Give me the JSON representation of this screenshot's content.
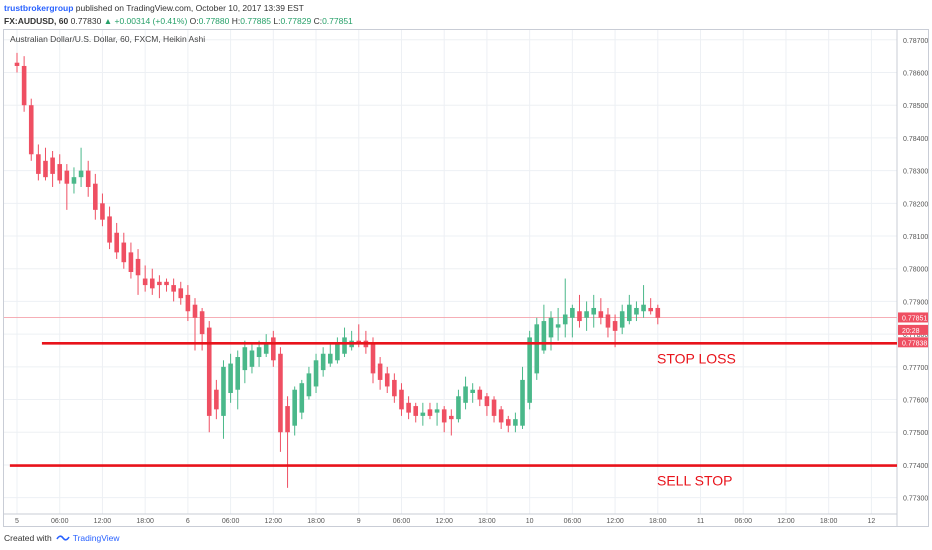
{
  "header": {
    "publisher": "trustbrokergroup",
    "published_text": "published on TradingView.com, October 10, 2017 13:39 EST",
    "symbol": "FX:AUDUSD, 60",
    "last": "0.77830",
    "change": "▲ +0.00314 (+0.41%)",
    "o_label": "O:",
    "o_value": "0.77880",
    "h_label": "H:",
    "h_value": "0.77885",
    "l_label": "L:",
    "l_value": "0.77829",
    "c_label": "C:",
    "c_value": "0.77851"
  },
  "footer": {
    "created_with": "Created with",
    "brand": "TradingView",
    "logo_icon": "tradingview-logo-icon"
  },
  "colors": {
    "up": "#4ab88a",
    "down": "#ef4f62",
    "level_line": "#e8131b",
    "grid": "#edf0f4",
    "price_tag": "#ef4f62",
    "current_line": "#f4a3ab"
  },
  "chart_data": {
    "type": "candlestick",
    "title": "Australian Dollar/U.S. Dollar, 60, FXCM, Heikin Ashi",
    "ylim": [
      0.7725,
      0.7873
    ],
    "y_ticks": [
      0.787,
      0.786,
      0.785,
      0.784,
      0.783,
      0.782,
      0.781,
      0.78,
      0.779,
      0.778,
      0.777,
      0.776,
      0.775,
      0.774,
      0.773
    ],
    "y_tick_labels": [
      "0.78700",
      "0.78600",
      "0.78500",
      "0.78400",
      "0.78300",
      "0.78200",
      "0.78100",
      "0.78000",
      "0.77900",
      "0.77800",
      "0.77700",
      "0.77600",
      "0.77500",
      "0.77400",
      "0.77300"
    ],
    "x_tick_labels": [
      "5",
      "06:00",
      "12:00",
      "18:00",
      "6",
      "06:00",
      "12:00",
      "18:00",
      "9",
      "06:00",
      "12:00",
      "18:00",
      "10",
      "06:00",
      "12:00",
      "18:00",
      "11",
      "06:00",
      "12:00",
      "18:00",
      "12"
    ],
    "x_tick_hours": [
      0,
      6,
      12,
      18,
      24,
      30,
      36,
      42,
      48,
      54,
      60,
      66,
      72,
      78,
      84,
      90,
      96,
      102,
      108,
      114,
      120
    ],
    "candles": [
      {
        "t": 0.0,
        "o": 0.7863,
        "h": 0.7866,
        "l": 0.786,
        "c": 0.7862
      },
      {
        "t": 1.0,
        "o": 0.7862,
        "h": 0.7865,
        "l": 0.7848,
        "c": 0.785
      },
      {
        "t": 2.0,
        "o": 0.785,
        "h": 0.7852,
        "l": 0.7833,
        "c": 0.7835
      },
      {
        "t": 3.0,
        "o": 0.7835,
        "h": 0.7838,
        "l": 0.7827,
        "c": 0.7829
      },
      {
        "t": 4.0,
        "o": 0.7833,
        "h": 0.7837,
        "l": 0.7827,
        "c": 0.7828
      },
      {
        "t": 5.0,
        "o": 0.7834,
        "h": 0.7836,
        "l": 0.7825,
        "c": 0.7829
      },
      {
        "t": 6.0,
        "o": 0.7832,
        "h": 0.7835,
        "l": 0.7826,
        "c": 0.7827
      },
      {
        "t": 7.0,
        "o": 0.783,
        "h": 0.7832,
        "l": 0.7818,
        "c": 0.7826
      },
      {
        "t": 8.0,
        "o": 0.7826,
        "h": 0.7831,
        "l": 0.7823,
        "c": 0.7828
      },
      {
        "t": 9.0,
        "o": 0.7828,
        "h": 0.7837,
        "l": 0.7825,
        "c": 0.783
      },
      {
        "t": 10.0,
        "o": 0.783,
        "h": 0.7833,
        "l": 0.7822,
        "c": 0.7825
      },
      {
        "t": 11.0,
        "o": 0.7826,
        "h": 0.7829,
        "l": 0.7815,
        "c": 0.7818
      },
      {
        "t": 12.0,
        "o": 0.782,
        "h": 0.7823,
        "l": 0.7813,
        "c": 0.7815
      },
      {
        "t": 13.0,
        "o": 0.7816,
        "h": 0.7819,
        "l": 0.7806,
        "c": 0.7808
      },
      {
        "t": 14.0,
        "o": 0.7811,
        "h": 0.7814,
        "l": 0.7803,
        "c": 0.7805
      },
      {
        "t": 15.0,
        "o": 0.7808,
        "h": 0.7811,
        "l": 0.78,
        "c": 0.7802
      },
      {
        "t": 16.0,
        "o": 0.7805,
        "h": 0.7808,
        "l": 0.7797,
        "c": 0.7799
      },
      {
        "t": 17.0,
        "o": 0.7803,
        "h": 0.7806,
        "l": 0.7792,
        "c": 0.7798
      },
      {
        "t": 18.0,
        "o": 0.7797,
        "h": 0.7801,
        "l": 0.7793,
        "c": 0.7795
      },
      {
        "t": 19.0,
        "o": 0.7797,
        "h": 0.78,
        "l": 0.7792,
        "c": 0.7794
      },
      {
        "t": 20.0,
        "o": 0.7796,
        "h": 0.7798,
        "l": 0.7791,
        "c": 0.7795
      },
      {
        "t": 21.0,
        "o": 0.7796,
        "h": 0.7797,
        "l": 0.7793,
        "c": 0.7795
      },
      {
        "t": 22.0,
        "o": 0.7795,
        "h": 0.7797,
        "l": 0.779,
        "c": 0.7793
      },
      {
        "t": 23.0,
        "o": 0.7794,
        "h": 0.7796,
        "l": 0.7789,
        "c": 0.7791
      },
      {
        "t": 24.0,
        "o": 0.7792,
        "h": 0.7795,
        "l": 0.7784,
        "c": 0.7787
      },
      {
        "t": 25.0,
        "o": 0.7789,
        "h": 0.7791,
        "l": 0.7775,
        "c": 0.7785
      },
      {
        "t": 26.0,
        "o": 0.7787,
        "h": 0.7788,
        "l": 0.7775,
        "c": 0.778
      },
      {
        "t": 27.0,
        "o": 0.7782,
        "h": 0.7784,
        "l": 0.775,
        "c": 0.7755
      },
      {
        "t": 28.0,
        "o": 0.7763,
        "h": 0.7766,
        "l": 0.7754,
        "c": 0.7757
      },
      {
        "t": 29.0,
        "o": 0.7755,
        "h": 0.7772,
        "l": 0.7748,
        "c": 0.777
      },
      {
        "t": 30.0,
        "o": 0.7762,
        "h": 0.7774,
        "l": 0.7759,
        "c": 0.7771
      },
      {
        "t": 31.0,
        "o": 0.7763,
        "h": 0.7775,
        "l": 0.7757,
        "c": 0.7773
      },
      {
        "t": 32.0,
        "o": 0.7769,
        "h": 0.7778,
        "l": 0.7765,
        "c": 0.7776
      },
      {
        "t": 33.0,
        "o": 0.777,
        "h": 0.7777,
        "l": 0.7768,
        "c": 0.7775
      },
      {
        "t": 34.0,
        "o": 0.7773,
        "h": 0.7778,
        "l": 0.777,
        "c": 0.7776
      },
      {
        "t": 35.0,
        "o": 0.7774,
        "h": 0.778,
        "l": 0.7773,
        "c": 0.7777
      },
      {
        "t": 36.0,
        "o": 0.7779,
        "h": 0.7781,
        "l": 0.777,
        "c": 0.7772
      },
      {
        "t": 37.0,
        "o": 0.7774,
        "h": 0.7776,
        "l": 0.7744,
        "c": 0.775
      },
      {
        "t": 38.0,
        "o": 0.7758,
        "h": 0.7761,
        "l": 0.7733,
        "c": 0.775
      },
      {
        "t": 39.0,
        "o": 0.7752,
        "h": 0.7764,
        "l": 0.7749,
        "c": 0.7763
      },
      {
        "t": 40.0,
        "o": 0.7756,
        "h": 0.7766,
        "l": 0.7754,
        "c": 0.7765
      },
      {
        "t": 41.0,
        "o": 0.7761,
        "h": 0.777,
        "l": 0.776,
        "c": 0.7768
      },
      {
        "t": 42.0,
        "o": 0.7764,
        "h": 0.7774,
        "l": 0.7762,
        "c": 0.7772
      },
      {
        "t": 43.0,
        "o": 0.7769,
        "h": 0.7776,
        "l": 0.7767,
        "c": 0.7774
      },
      {
        "t": 44.0,
        "o": 0.7771,
        "h": 0.7777,
        "l": 0.777,
        "c": 0.7774
      },
      {
        "t": 45.0,
        "o": 0.7772,
        "h": 0.7779,
        "l": 0.7771,
        "c": 0.7777
      },
      {
        "t": 46.0,
        "o": 0.7774,
        "h": 0.7782,
        "l": 0.7773,
        "c": 0.7779
      },
      {
        "t": 47.0,
        "o": 0.7776,
        "h": 0.7781,
        "l": 0.7775,
        "c": 0.7778
      },
      {
        "t": 48.0,
        "o": 0.7778,
        "h": 0.7783,
        "l": 0.7776,
        "c": 0.7777
      },
      {
        "t": 49.0,
        "o": 0.7778,
        "h": 0.7781,
        "l": 0.7774,
        "c": 0.7776
      },
      {
        "t": 50.0,
        "o": 0.7777,
        "h": 0.7779,
        "l": 0.7765,
        "c": 0.7768
      },
      {
        "t": 51.0,
        "o": 0.7771,
        "h": 0.7773,
        "l": 0.7763,
        "c": 0.7766
      },
      {
        "t": 52.0,
        "o": 0.7768,
        "h": 0.777,
        "l": 0.7762,
        "c": 0.7764
      },
      {
        "t": 53.0,
        "o": 0.7766,
        "h": 0.7768,
        "l": 0.7759,
        "c": 0.7761
      },
      {
        "t": 54.0,
        "o": 0.7763,
        "h": 0.7765,
        "l": 0.7755,
        "c": 0.7757
      },
      {
        "t": 55.0,
        "o": 0.7759,
        "h": 0.7761,
        "l": 0.7754,
        "c": 0.7756
      },
      {
        "t": 56.0,
        "o": 0.7758,
        "h": 0.7759,
        "l": 0.7753,
        "c": 0.7755
      },
      {
        "t": 57.0,
        "o": 0.7755,
        "h": 0.7759,
        "l": 0.7752,
        "c": 0.7756
      },
      {
        "t": 58.0,
        "o": 0.7757,
        "h": 0.7759,
        "l": 0.7754,
        "c": 0.7755
      },
      {
        "t": 59.0,
        "o": 0.7756,
        "h": 0.7759,
        "l": 0.7752,
        "c": 0.7757
      },
      {
        "t": 60.0,
        "o": 0.7757,
        "h": 0.7758,
        "l": 0.775,
        "c": 0.7753
      },
      {
        "t": 61.0,
        "o": 0.7755,
        "h": 0.7757,
        "l": 0.7749,
        "c": 0.7754
      },
      {
        "t": 62.0,
        "o": 0.7754,
        "h": 0.7763,
        "l": 0.7753,
        "c": 0.7761
      },
      {
        "t": 63.0,
        "o": 0.7759,
        "h": 0.7767,
        "l": 0.7757,
        "c": 0.7764
      },
      {
        "t": 64.0,
        "o": 0.7762,
        "h": 0.7765,
        "l": 0.7759,
        "c": 0.7763
      },
      {
        "t": 65.0,
        "o": 0.7763,
        "h": 0.7764,
        "l": 0.7758,
        "c": 0.776
      },
      {
        "t": 66.0,
        "o": 0.7761,
        "h": 0.7762,
        "l": 0.7755,
        "c": 0.7758
      },
      {
        "t": 67.0,
        "o": 0.776,
        "h": 0.7761,
        "l": 0.7753,
        "c": 0.7755
      },
      {
        "t": 68.0,
        "o": 0.7757,
        "h": 0.7758,
        "l": 0.7751,
        "c": 0.7753
      },
      {
        "t": 69.0,
        "o": 0.7754,
        "h": 0.7755,
        "l": 0.775,
        "c": 0.7752
      },
      {
        "t": 70.0,
        "o": 0.7752,
        "h": 0.7756,
        "l": 0.775,
        "c": 0.7754
      },
      {
        "t": 71.0,
        "o": 0.7752,
        "h": 0.777,
        "l": 0.7751,
        "c": 0.7766
      },
      {
        "t": 72.0,
        "o": 0.7759,
        "h": 0.7781,
        "l": 0.7757,
        "c": 0.7779
      },
      {
        "t": 73.0,
        "o": 0.7768,
        "h": 0.7785,
        "l": 0.7766,
        "c": 0.7783
      },
      {
        "t": 74.0,
        "o": 0.7775,
        "h": 0.7789,
        "l": 0.7774,
        "c": 0.7784
      },
      {
        "t": 75.0,
        "o": 0.7779,
        "h": 0.7787,
        "l": 0.7775,
        "c": 0.7785
      },
      {
        "t": 76.0,
        "o": 0.7782,
        "h": 0.7788,
        "l": 0.7778,
        "c": 0.7783
      },
      {
        "t": 77.0,
        "o": 0.7783,
        "h": 0.7797,
        "l": 0.7779,
        "c": 0.7786
      },
      {
        "t": 78.0,
        "o": 0.7785,
        "h": 0.7789,
        "l": 0.7779,
        "c": 0.7788
      },
      {
        "t": 79.0,
        "o": 0.7787,
        "h": 0.7792,
        "l": 0.7782,
        "c": 0.7784
      },
      {
        "t": 80.0,
        "o": 0.7785,
        "h": 0.779,
        "l": 0.7781,
        "c": 0.7787
      },
      {
        "t": 81.0,
        "o": 0.7786,
        "h": 0.7792,
        "l": 0.7782,
        "c": 0.7788
      },
      {
        "t": 82.0,
        "o": 0.7787,
        "h": 0.7791,
        "l": 0.7783,
        "c": 0.7785
      },
      {
        "t": 83.0,
        "o": 0.7786,
        "h": 0.7788,
        "l": 0.7779,
        "c": 0.7782
      },
      {
        "t": 84.0,
        "o": 0.7784,
        "h": 0.7786,
        "l": 0.7776,
        "c": 0.7781
      },
      {
        "t": 85.0,
        "o": 0.7782,
        "h": 0.7789,
        "l": 0.778,
        "c": 0.7787
      },
      {
        "t": 86.0,
        "o": 0.7784,
        "h": 0.7792,
        "l": 0.7783,
        "c": 0.7789
      },
      {
        "t": 87.0,
        "o": 0.7786,
        "h": 0.779,
        "l": 0.7784,
        "c": 0.7788
      },
      {
        "t": 88.0,
        "o": 0.7787,
        "h": 0.7795,
        "l": 0.7785,
        "c": 0.7789
      },
      {
        "t": 89.0,
        "o": 0.7788,
        "h": 0.7791,
        "l": 0.7786,
        "c": 0.7787
      },
      {
        "t": 90.0,
        "o": 0.7788,
        "h": 0.7789,
        "l": 0.7783,
        "c": 0.7785
      }
    ],
    "levels": [
      {
        "label": "STOP LOSS",
        "price": 0.77772,
        "t_start": 3.5
      },
      {
        "label": "SELL STOP",
        "price": 0.77398,
        "t_start": -1.0
      }
    ],
    "current_price": 0.77851,
    "price_tags": [
      {
        "label": "0.77851",
        "price": 0.77851
      },
      {
        "label": "20:28",
        "price": 0.77813
      },
      {
        "label": "0.77838",
        "price": 0.77775
      }
    ],
    "grid": true
  }
}
